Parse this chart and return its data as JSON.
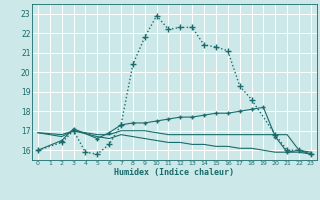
{
  "xlabel": "Humidex (Indice chaleur)",
  "bg_color": "#cce8e8",
  "grid_color": "#b0d4d4",
  "line_color": "#1a6b6b",
  "xlim": [
    -0.5,
    23.5
  ],
  "ylim": [
    15.5,
    23.5
  ],
  "yticks": [
    16,
    17,
    18,
    19,
    20,
    21,
    22,
    23
  ],
  "xticks": [
    0,
    1,
    2,
    3,
    4,
    5,
    6,
    7,
    8,
    9,
    10,
    11,
    12,
    13,
    14,
    15,
    16,
    17,
    18,
    19,
    20,
    21,
    22,
    23
  ],
  "series": [
    {
      "x": [
        0,
        2,
        3,
        4,
        5,
        6,
        7,
        8,
        9,
        10,
        11,
        12,
        13,
        14,
        15,
        16,
        17,
        18,
        20,
        21,
        22,
        23
      ],
      "y": [
        16.0,
        16.4,
        17.0,
        15.9,
        15.8,
        16.3,
        17.3,
        20.4,
        21.8,
        22.9,
        22.2,
        22.3,
        22.3,
        21.4,
        21.3,
        21.1,
        19.3,
        18.6,
        16.8,
        16.0,
        16.0,
        15.8
      ],
      "marker": "+",
      "markersize": 4,
      "linewidth": 1.0,
      "linestyle": ":"
    },
    {
      "x": [
        0,
        2,
        3,
        5,
        6,
        7,
        8,
        9,
        10,
        11,
        12,
        13,
        14,
        15,
        16,
        17,
        18,
        19,
        20,
        21,
        22,
        23
      ],
      "y": [
        16.0,
        16.5,
        17.1,
        16.6,
        16.9,
        17.3,
        17.4,
        17.4,
        17.5,
        17.6,
        17.7,
        17.7,
        17.8,
        17.9,
        17.9,
        18.0,
        18.1,
        18.2,
        16.7,
        15.9,
        16.0,
        15.8
      ],
      "marker": "+",
      "markersize": 3,
      "linewidth": 0.8,
      "linestyle": "-"
    },
    {
      "x": [
        0,
        2,
        3,
        5,
        6,
        7,
        8,
        9,
        10,
        11,
        12,
        13,
        14,
        15,
        16,
        17,
        18,
        19,
        20,
        21,
        22,
        23
      ],
      "y": [
        16.9,
        16.7,
        17.0,
        16.7,
        16.6,
        16.8,
        16.7,
        16.6,
        16.5,
        16.4,
        16.4,
        16.3,
        16.3,
        16.2,
        16.2,
        16.1,
        16.1,
        16.0,
        15.9,
        15.9,
        15.9,
        15.8
      ],
      "marker": null,
      "markersize": 0,
      "linewidth": 0.8,
      "linestyle": "-"
    },
    {
      "x": [
        0,
        2,
        3,
        5,
        6,
        7,
        8,
        9,
        10,
        11,
        12,
        13,
        14,
        15,
        16,
        17,
        18,
        19,
        20,
        21,
        22,
        23
      ],
      "y": [
        16.9,
        16.8,
        17.0,
        16.8,
        16.8,
        17.0,
        17.0,
        17.0,
        16.9,
        16.8,
        16.8,
        16.8,
        16.8,
        16.8,
        16.8,
        16.8,
        16.8,
        16.8,
        16.8,
        16.8,
        16.0,
        15.9
      ],
      "marker": null,
      "markersize": 0,
      "linewidth": 0.8,
      "linestyle": "-"
    }
  ]
}
